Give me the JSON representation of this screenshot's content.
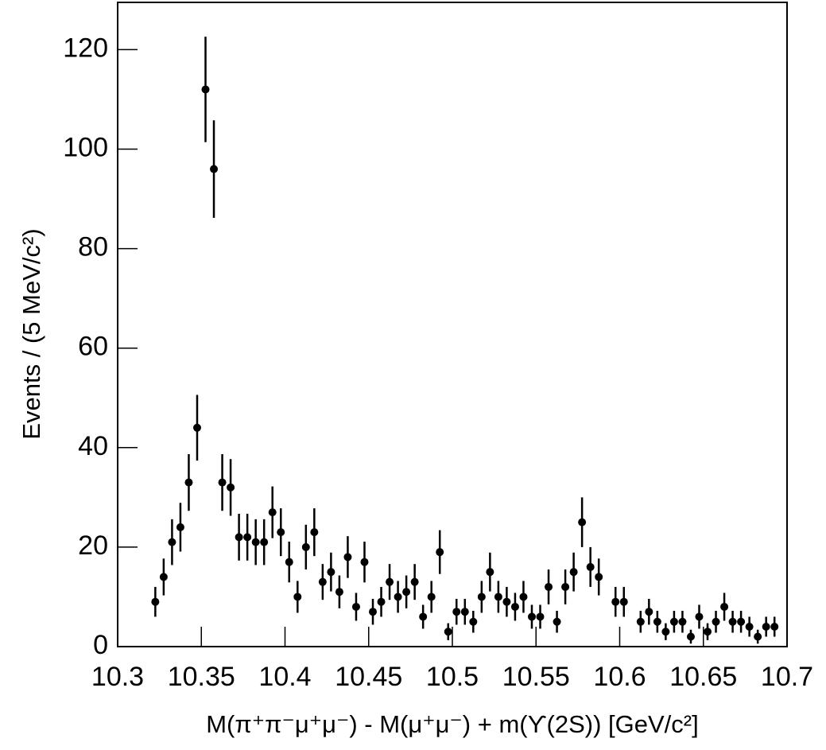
{
  "chart_data": {
    "type": "scatter",
    "xlabel": "M(π⁺π⁻μ⁺μ⁻) - M(μ⁺μ⁻) + m(ϒ(2S)) [GeV/c²]",
    "ylabel": "Events / (5 MeV/c²)",
    "xlim": [
      10.3,
      10.7
    ],
    "ylim": [
      0,
      129.5
    ],
    "xticks": [
      10.3,
      10.35,
      10.4,
      10.45,
      10.5,
      10.55,
      10.6,
      10.65,
      10.7
    ],
    "yticks": [
      0,
      20,
      40,
      60,
      80,
      100,
      120
    ],
    "color": "#000000",
    "series": [
      {
        "x": [
          10.3225,
          10.3275,
          10.3325,
          10.3375,
          10.3425,
          10.3475,
          10.3525,
          10.3575,
          10.3625,
          10.3675,
          10.3725,
          10.3775,
          10.3825,
          10.3875,
          10.3925,
          10.3975,
          10.4025,
          10.4075,
          10.4125,
          10.4175,
          10.4225,
          10.4275,
          10.4325,
          10.4375,
          10.4425,
          10.4475,
          10.4525,
          10.4575,
          10.4625,
          10.4675,
          10.4725,
          10.4775,
          10.4825,
          10.4875,
          10.4925,
          10.4975,
          10.5025,
          10.5075,
          10.5125,
          10.5175,
          10.5225,
          10.5275,
          10.5325,
          10.5375,
          10.5425,
          10.5475,
          10.5525,
          10.5575,
          10.5625,
          10.5675,
          10.5725,
          10.5775,
          10.5825,
          10.5875,
          10.5975,
          10.6025,
          10.6125,
          10.6175,
          10.6225,
          10.6275,
          10.6325,
          10.6375,
          10.6425,
          10.6475,
          10.6525,
          10.6575,
          10.6625,
          10.6675,
          10.6725,
          10.6775,
          10.6825,
          10.6875,
          10.6925
        ],
        "values": [
          9,
          14,
          21,
          24,
          33,
          44,
          112,
          96,
          33,
          32,
          22,
          22,
          21,
          21,
          27,
          23,
          17,
          10,
          20,
          23,
          13,
          15,
          11,
          18,
          8,
          17,
          7,
          9,
          13,
          10,
          11,
          13,
          6,
          10,
          19,
          3,
          7,
          7,
          5,
          10,
          15,
          10,
          9,
          8,
          10,
          6,
          6,
          12,
          5,
          12,
          15,
          25,
          16,
          14,
          9,
          9,
          5,
          7,
          5,
          3,
          5,
          5,
          2,
          6,
          3,
          5,
          8,
          5,
          5,
          4,
          2,
          4,
          4
        ],
        "errors": [
          3,
          3.7,
          4.6,
          4.9,
          5.7,
          6.6,
          10.6,
          9.8,
          5.7,
          5.7,
          4.7,
          4.7,
          4.6,
          4.6,
          5.2,
          4.8,
          4.1,
          3.2,
          4.5,
          4.8,
          3.6,
          3.9,
          3.3,
          4.2,
          2.8,
          4.1,
          2.6,
          3,
          3.6,
          3.2,
          3.3,
          3.6,
          2.4,
          3.2,
          4.4,
          1.7,
          2.6,
          2.6,
          2.2,
          3.2,
          3.9,
          3.2,
          3,
          2.8,
          3.2,
          2.4,
          2.4,
          3.5,
          2.2,
          3.5,
          3.9,
          5,
          4,
          3.7,
          3,
          3,
          2.2,
          2.6,
          2.2,
          1.7,
          2.2,
          2.2,
          1.4,
          2.4,
          1.7,
          2.2,
          2.8,
          2.2,
          2.2,
          2,
          1.4,
          2,
          2
        ]
      }
    ]
  }
}
